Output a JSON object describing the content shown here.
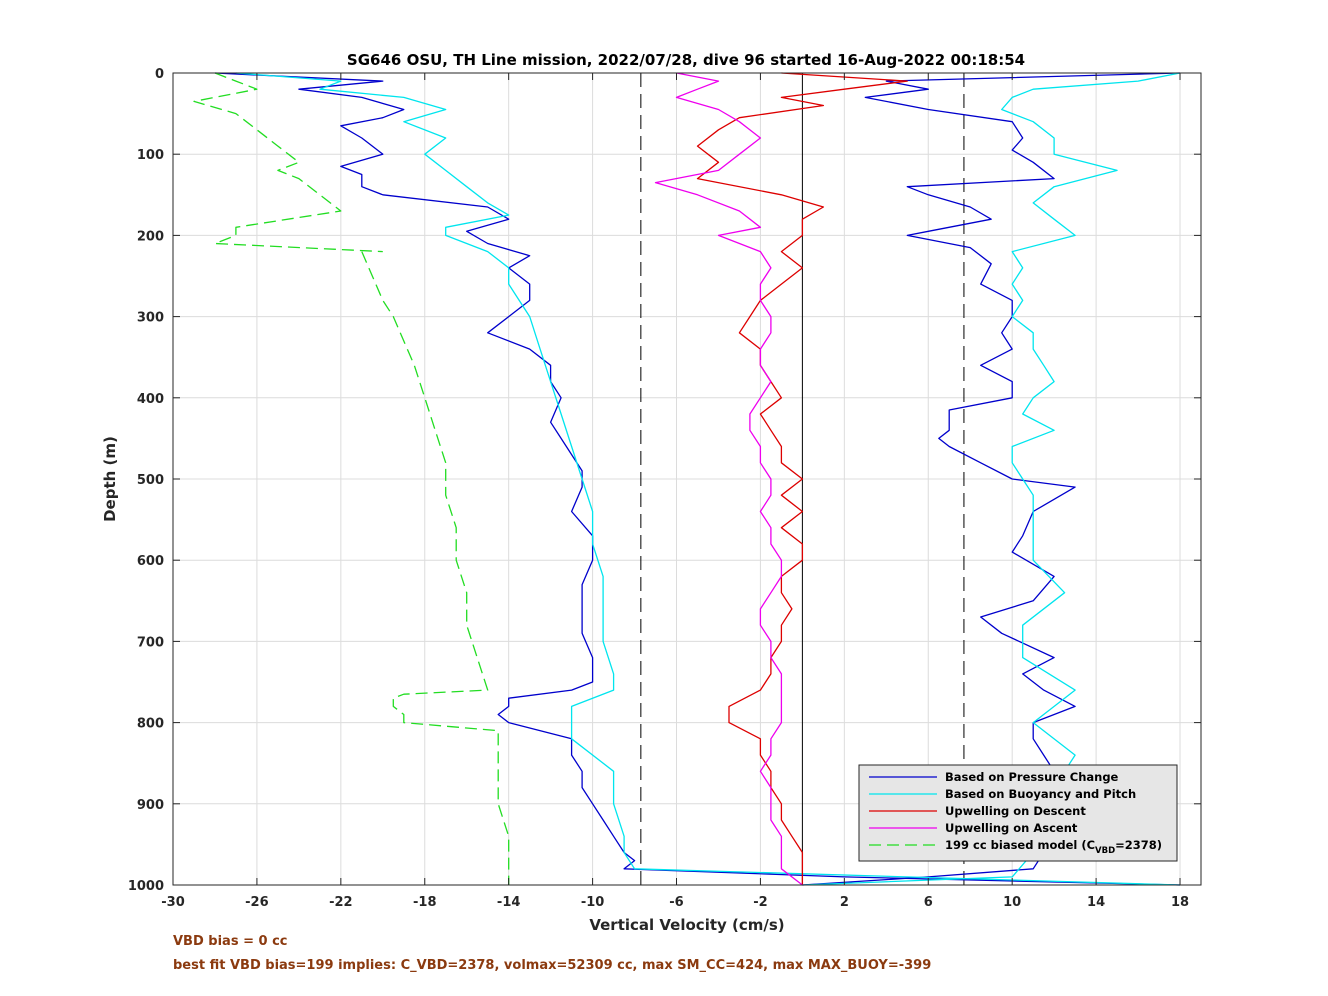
{
  "chart_data": {
    "type": "line",
    "title": "SG646 OSU, TH Line mission, 2022/07/28, dive 96 started 16-Aug-2022 00:18:54",
    "xlabel": "Vertical Velocity (cm/s)",
    "ylabel": "Depth (m)",
    "xlim": [
      -30,
      19
    ],
    "ylim": [
      0,
      1000
    ],
    "y_reversed": true,
    "xticks": [
      "-30",
      "-26",
      "-22",
      "-18",
      "-14",
      "-10",
      "-6",
      "-2",
      "2",
      "6",
      "10",
      "14",
      "18"
    ],
    "yticks": [
      "0",
      "100",
      "200",
      "300",
      "400",
      "500",
      "600",
      "700",
      "800",
      "900",
      "1000"
    ],
    "grid": true,
    "legend_position": "bottom-right",
    "reference_lines": [
      {
        "x": 0,
        "style": "solid",
        "color": "#000000"
      },
      {
        "x": -7.7,
        "style": "dashed",
        "color": "#000000"
      },
      {
        "x": 7.7,
        "style": "dashed",
        "color": "#000000"
      }
    ],
    "series": [
      {
        "name": "Based on Pressure Change",
        "color": "#0000cc",
        "style": "solid",
        "legend_label": "Based on Pressure Change",
        "groups": [
          {
            "depth": [
              0,
              10,
              20,
              30,
              45,
              55,
              65,
              80,
              100,
              115,
              125,
              140,
              150,
              165,
              180,
              195,
              210,
              225,
              240,
              260,
              280,
              300,
              320,
              340,
              360,
              380,
              400,
              430,
              450,
              470,
              490,
              510,
              540,
              570,
              600,
              630,
              660,
              690,
              720,
              750,
              760,
              770,
              780,
              790,
              800,
              820,
              840,
              860,
              880,
              900,
              920,
              940,
              960,
              970,
              980,
              990,
              1000
            ],
            "x": [
              -28,
              -20,
              -24,
              -21,
              -19,
              -20,
              -22,
              -21,
              -20,
              -22,
              -21,
              -21,
              -20,
              -15,
              -14,
              -16,
              -15,
              -13,
              -14,
              -13,
              -13,
              -14,
              -15,
              -13,
              -12,
              -12,
              -11.5,
              -12,
              -11.5,
              -11,
              -10.5,
              -10.5,
              -11,
              -10,
              -10,
              -10.5,
              -10.5,
              -10.5,
              -10,
              -10,
              -11,
              -14,
              -14,
              -14.5,
              -14,
              -11,
              -11,
              -10.5,
              -10.5,
              -10,
              -9.5,
              -9,
              -8.5,
              -8,
              -8.5,
              2,
              18
            ]
          },
          {
            "depth": [
              0,
              10,
              20,
              30,
              45,
              60,
              80,
              95,
              110,
              130,
              140,
              150,
              165,
              180,
              195,
              200,
              215,
              235,
              260,
              280,
              300,
              320,
              340,
              360,
              380,
              400,
              415,
              440,
              450,
              460,
              480,
              500,
              510,
              540,
              570,
              590,
              620,
              650,
              670,
              690,
              720,
              740,
              760,
              780,
              800,
              820,
              840,
              860,
              880,
              900,
              920,
              940,
              960,
              980,
              990,
              1000
            ],
            "x": [
              18,
              4,
              6,
              3,
              6,
              10,
              10.5,
              10,
              11,
              12,
              5,
              6,
              8,
              9,
              6,
              5,
              8,
              9,
              8.5,
              10,
              10,
              9.5,
              10,
              8.5,
              10,
              10,
              7,
              7,
              6.5,
              7,
              8.5,
              10,
              13,
              11,
              10.5,
              10,
              12,
              11,
              8.5,
              9.5,
              12,
              10.5,
              11.5,
              13,
              11,
              11,
              11.5,
              12,
              11.5,
              12,
              13,
              12.5,
              11.5,
              11,
              6,
              0
            ]
          }
        ]
      },
      {
        "name": "Based on Buoyancy and Pitch",
        "color": "#00e5ee",
        "style": "solid",
        "legend_label": "Based on Buoyancy and Pitch",
        "groups": [
          {
            "depth": [
              0,
              10,
              20,
              30,
              45,
              60,
              80,
              100,
              120,
              140,
              160,
              175,
              190,
              200,
              220,
              240,
              260,
              300,
              340,
              380,
              420,
              460,
              500,
              540,
              580,
              620,
              660,
              700,
              740,
              760,
              780,
              800,
              820,
              860,
              900,
              940,
              960,
              980,
              1000
            ],
            "x": [
              -27,
              -22,
              -23,
              -19,
              -17,
              -19,
              -17,
              -18,
              -17,
              -16,
              -15,
              -14,
              -17,
              -17,
              -15,
              -14,
              -14,
              -13,
              -12.5,
              -12,
              -11.5,
              -11,
              -10.5,
              -10,
              -10,
              -9.5,
              -9.5,
              -9.5,
              -9,
              -9,
              -11,
              -11,
              -11,
              -9,
              -9,
              -8.5,
              -8.5,
              -8,
              18
            ]
          },
          {
            "depth": [
              0,
              10,
              20,
              30,
              45,
              60,
              80,
              100,
              120,
              140,
              160,
              180,
              200,
              220,
              240,
              260,
              280,
              300,
              320,
              340,
              360,
              380,
              400,
              420,
              440,
              460,
              480,
              500,
              520,
              560,
              600,
              640,
              680,
              720,
              760,
              800,
              840,
              880,
              920,
              960,
              990,
              1000
            ],
            "x": [
              18,
              16,
              11,
              10,
              9.5,
              11,
              12,
              12,
              15,
              12,
              11,
              12,
              13,
              10,
              10.5,
              10,
              10.5,
              10,
              11,
              11,
              11.5,
              12,
              11,
              10.5,
              12,
              10,
              10,
              10.5,
              11,
              11,
              11,
              12.5,
              10.5,
              10.5,
              13,
              11,
              13,
              12,
              11,
              11,
              10,
              0
            ]
          }
        ]
      },
      {
        "name": "Upwelling on Descent",
        "color": "#dd0000",
        "style": "solid",
        "legend_label": "Upwelling on Descent",
        "groups": [
          {
            "depth": [
              0,
              10,
              20,
              30,
              40,
              55,
              70,
              90,
              110,
              130,
              150,
              165,
              180,
              200,
              220,
              240,
              260,
              280,
              300,
              320,
              340,
              360,
              380,
              400,
              420,
              440,
              460,
              480,
              500,
              520,
              540,
              560,
              580,
              600,
              620,
              640,
              660,
              680,
              700,
              720,
              740,
              760,
              780,
              800,
              820,
              840,
              860,
              880,
              900,
              920,
              940,
              960,
              980,
              1000
            ],
            "x": [
              -1,
              5,
              2,
              -1,
              1,
              -3,
              -4,
              -5,
              -4,
              -5,
              -1,
              1,
              0,
              0,
              -1,
              0,
              -1,
              -2,
              -2.5,
              -3,
              -2,
              -2,
              -1.5,
              -1,
              -2,
              -1.5,
              -1,
              -1,
              0,
              -1,
              0,
              -1,
              0,
              0,
              -1,
              -1,
              -0.5,
              -1,
              -1,
              -1.5,
              -1.5,
              -2,
              -3.5,
              -3.5,
              -2,
              -2,
              -1.5,
              -1.5,
              -1,
              -1,
              -0.5,
              0,
              0,
              0
            ]
          }
        ]
      },
      {
        "name": "Upwelling on Ascent",
        "color": "#ee00ee",
        "style": "solid",
        "legend_label": "Upwelling on Ascent",
        "groups": [
          {
            "depth": [
              0,
              10,
              20,
              30,
              45,
              60,
              80,
              100,
              120,
              135,
              150,
              170,
              190,
              200,
              220,
              240,
              260,
              280,
              300,
              320,
              340,
              360,
              380,
              400,
              420,
              440,
              460,
              480,
              500,
              520,
              540,
              560,
              580,
              600,
              620,
              640,
              660,
              680,
              700,
              720,
              740,
              760,
              780,
              800,
              820,
              840,
              860,
              880,
              900,
              920,
              940,
              960,
              980,
              1000
            ],
            "x": [
              -6,
              -4,
              -5,
              -6,
              -4,
              -3,
              -2,
              -3,
              -4,
              -7,
              -5,
              -3,
              -2,
              -4,
              -2,
              -1.5,
              -2,
              -2,
              -1.5,
              -1.5,
              -2,
              -2,
              -1.5,
              -2,
              -2.5,
              -2.5,
              -2,
              -2,
              -1.5,
              -1.5,
              -2,
              -1.5,
              -1.5,
              -1,
              -1,
              -1.5,
              -2,
              -2,
              -1.5,
              -1.5,
              -1,
              -1,
              -1,
              -1,
              -1.5,
              -1.5,
              -2,
              -1.5,
              -1.5,
              -1.5,
              -1,
              -1,
              -1,
              0
            ]
          }
        ]
      },
      {
        "name": "199 cc biased model (C_VBD=2378)",
        "color": "#22dd22",
        "style": "dashed",
        "legend_label": "199 cc biased model (C",
        "legend_sub": "VBD",
        "legend_tail": "=2378)",
        "groups": [
          {
            "depth": [
              0,
              10,
              20,
              35,
              50,
              70,
              90,
              110,
              120,
              130,
              150,
              170,
              190,
              200,
              210,
              220
            ],
            "x": [
              -28,
              -27,
              -26,
              -29,
              -27,
              -26,
              -25,
              -24,
              -25,
              -24,
              -23,
              -22,
              -27,
              -27,
              -28,
              -20
            ]
          },
          {
            "depth": [
              220,
              250,
              280,
              300,
              330,
              360,
              400,
              440,
              480,
              500,
              520,
              560,
              600,
              640,
              680,
              720,
              760,
              765,
              770,
              780,
              790,
              800,
              810,
              840,
              870,
              900,
              940,
              960,
              980,
              1000
            ],
            "x": [
              -21,
              -20.5,
              -20,
              -19.5,
              -19,
              -18.5,
              -18,
              -17.5,
              -17,
              -17,
              -17,
              -16.5,
              -16.5,
              -16,
              -16,
              -15.5,
              -15,
              -19,
              -19.5,
              -19.5,
              -19,
              -19,
              -14.5,
              -14.5,
              -14.5,
              -14.5,
              -14,
              -14,
              -14,
              -14
            ]
          }
        ]
      }
    ]
  },
  "notes": {
    "vbd_bias": "VBD bias = 0 cc",
    "best_fit": "best fit VBD bias=199 implies: C_VBD=2378, volmax=52309 cc, max SM_CC=424, max MAX_BUOY=-399"
  }
}
